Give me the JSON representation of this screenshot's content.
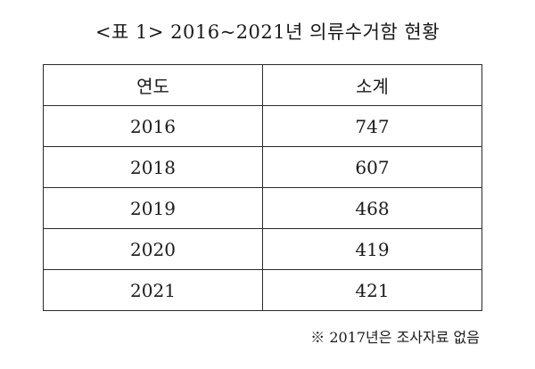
{
  "title": "<표 1> 2016~2021년 의류수거함 현황",
  "table": {
    "headers": [
      "연도",
      "소계"
    ],
    "rows": [
      {
        "year": "2016",
        "subtotal": "747"
      },
      {
        "year": "2018",
        "subtotal": "607"
      },
      {
        "year": "2019",
        "subtotal": "468"
      },
      {
        "year": "2020",
        "subtotal": "419"
      },
      {
        "year": "2021",
        "subtotal": "421"
      }
    ]
  },
  "note": "※ 2017년은 조사자료 없음"
}
